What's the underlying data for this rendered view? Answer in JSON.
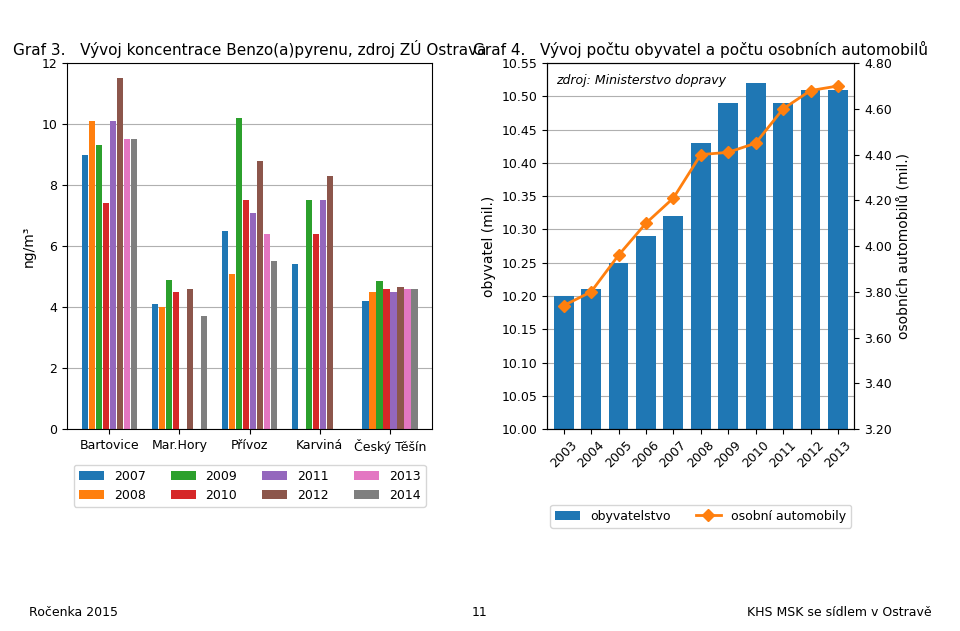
{
  "chart_data": [
    {
      "type": "bar",
      "title": "Graf 3.   Vývoj koncentrace Benzo(a)pyrenu, zdroj ZÚ Ostrava",
      "ylabel": "ng/m³",
      "categories": [
        "Bartovice",
        "Mar.Hory",
        "Přívoz",
        "Karviná",
        "Český Těšín"
      ],
      "series": [
        {
          "name": "2007",
          "values": [
            9.0,
            4.1,
            6.5,
            5.4,
            4.2
          ]
        },
        {
          "name": "2008",
          "values": [
            10.1,
            4.0,
            5.1,
            null,
            4.5
          ]
        },
        {
          "name": "2009",
          "values": [
            9.3,
            4.9,
            10.2,
            7.5,
            4.85
          ]
        },
        {
          "name": "2010",
          "values": [
            7.4,
            4.5,
            7.5,
            6.4,
            4.6
          ]
        },
        {
          "name": "2011",
          "values": [
            10.1,
            null,
            7.1,
            7.5,
            4.5
          ]
        },
        {
          "name": "2012",
          "values": [
            11.5,
            4.6,
            8.8,
            8.3,
            4.65
          ]
        },
        {
          "name": "2013",
          "values": [
            9.5,
            null,
            6.4,
            null,
            4.6
          ]
        },
        {
          "name": "2014",
          "values": [
            9.5,
            3.7,
            5.5,
            null,
            4.6
          ]
        }
      ],
      "ylim": [
        0,
        12
      ],
      "yticks": [
        0,
        2,
        4,
        6,
        8,
        10,
        12
      ],
      "grid": "y",
      "legend": "upper center"
    },
    {
      "type": "bar",
      "title": "Graf 4.   Vývoj počtu obyvatel a počtu osobních automobilů",
      "ylabel": "obyvatel (mil.)",
      "y2label": "osobních automobilů (mil.)",
      "annotations": [
        "zdroj: Ministerstvo dopravy"
      ],
      "categories": [
        "2003",
        "2004",
        "2005",
        "2006",
        "2007",
        "2008",
        "2009",
        "2010",
        "2011",
        "2012",
        "2013"
      ],
      "series": [
        {
          "name": "obyvatelstvo",
          "type": "bar",
          "values": [
            10.2,
            10.21,
            10.25,
            10.29,
            10.32,
            10.43,
            10.49,
            10.52,
            10.49,
            10.51,
            10.51
          ]
        },
        {
          "name": "osobní automobily",
          "type": "line",
          "axis": "y2",
          "marker": "diamond",
          "values": [
            3.74,
            3.8,
            3.96,
            4.1,
            4.21,
            4.4,
            4.41,
            4.45,
            4.6,
            4.68,
            4.7
          ]
        }
      ],
      "ylim": [
        10.0,
        10.55
      ],
      "yticks": [
        {
          "value": 10.0,
          "label": "10.00"
        },
        {
          "value": 10.05,
          "label": "10.05"
        },
        {
          "value": 10.1,
          "label": "10.10"
        },
        {
          "value": 10.15,
          "label": "10.15"
        },
        {
          "value": 10.2,
          "label": "10.20"
        },
        {
          "value": 10.25,
          "label": "10.25"
        },
        {
          "value": 10.3,
          "label": "10.30"
        },
        {
          "value": 10.35,
          "label": "10.35"
        },
        {
          "value": 10.4,
          "label": "10.40"
        },
        {
          "value": 10.45,
          "label": "10.45"
        },
        {
          "value": 10.5,
          "label": "10.50"
        },
        {
          "value": 10.55,
          "label": "10.55"
        }
      ],
      "y2lim": [
        3.2,
        4.8
      ],
      "y2ticks": [
        {
          "value": 3.2,
          "label": "3.20"
        },
        {
          "value": 3.4,
          "label": "3.40"
        },
        {
          "value": 3.6,
          "label": "3.60"
        },
        {
          "value": 3.8,
          "label": "3.80"
        },
        {
          "value": 4.0,
          "label": "4.00"
        },
        {
          "value": 4.2,
          "label": "4.20"
        },
        {
          "value": 4.4,
          "label": "4.40"
        },
        {
          "value": 4.6,
          "label": "4.60"
        },
        {
          "value": 4.8,
          "label": "4.80"
        }
      ],
      "grid": "y",
      "legend": "upper center"
    }
  ],
  "annotations": [
    "Ročenka 2015",
    "11",
    "KHS MSK se sídlem v Ostravě"
  ]
}
